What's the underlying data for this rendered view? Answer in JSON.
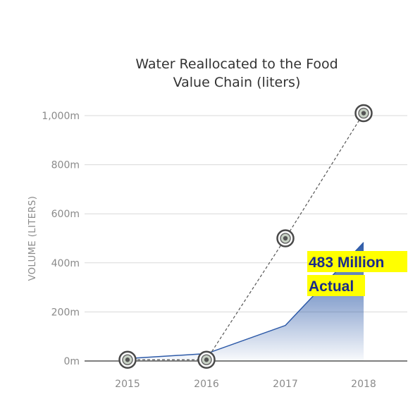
{
  "chart_data": {
    "type": "line",
    "title_lines": [
      "Water Reallocated to the Food",
      "Value Chain (liters)"
    ],
    "ylabel": "VOLUME (LITERS)",
    "xlabel": "",
    "categories": [
      "2015",
      "2016",
      "2017",
      "2018"
    ],
    "ylim": [
      0,
      1000
    ],
    "yticks": [
      {
        "value": 0,
        "label": "0m"
      },
      {
        "value": 200,
        "label": "200m"
      },
      {
        "value": 400,
        "label": "400m"
      },
      {
        "value": 600,
        "label": "600m"
      },
      {
        "value": 800,
        "label": "800m"
      },
      {
        "value": 1000,
        "label": "1,000m"
      }
    ],
    "grid": true,
    "series": [
      {
        "kind": "area",
        "values": [
          10,
          30,
          145,
          483
        ],
        "color": "#2d5aa8"
      },
      {
        "kind": "dashed-line-markers",
        "values": [
          5,
          5,
          500,
          1010
        ],
        "color": "#555555"
      }
    ],
    "annotation": {
      "lines": [
        "483 Million",
        "Actual"
      ],
      "color": "#1a2a8c",
      "background": "#ffff00"
    }
  }
}
